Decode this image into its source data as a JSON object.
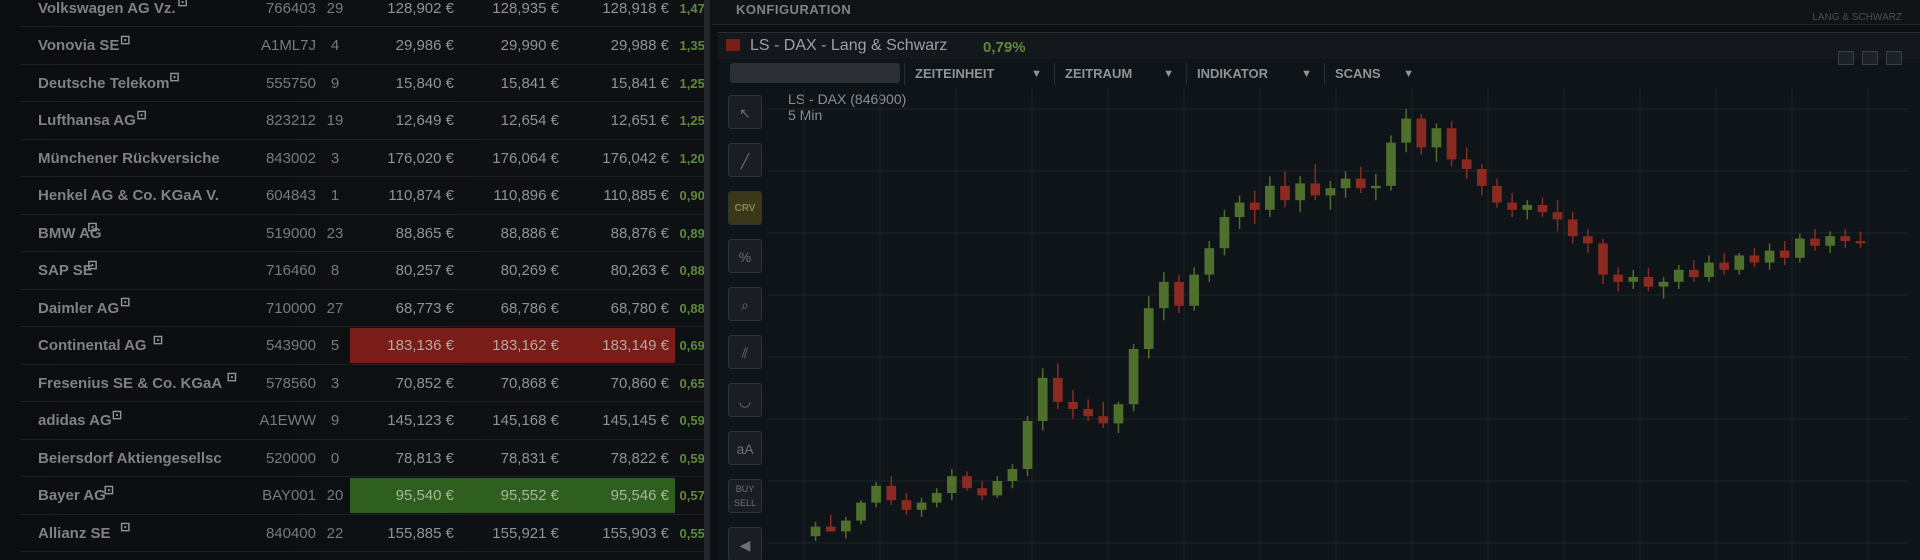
{
  "quotes": [
    {
      "name": "Volkswagen AG Vz.",
      "sup": true,
      "wkn": "766403",
      "count": "29",
      "c1": "128,902 €",
      "c2": "128,935 €",
      "c3": "128,918 €",
      "pct": "1,47 %",
      "hl": ""
    },
    {
      "name": "Vonovia SE",
      "sup": true,
      "wkn": "A1ML7J",
      "count": "4",
      "c1": "29,986 €",
      "c2": "29,990 €",
      "c3": "29,988 €",
      "pct": "1,35 %",
      "hl": ""
    },
    {
      "name": "Deutsche Telekom",
      "sup": true,
      "wkn": "555750",
      "count": "9",
      "c1": "15,840 €",
      "c2": "15,841 €",
      "c3": "15,841 €",
      "pct": "1,25 %",
      "hl": ""
    },
    {
      "name": "Lufthansa AG",
      "sup": true,
      "wkn": "823212",
      "count": "19",
      "c1": "12,649 €",
      "c2": "12,654 €",
      "c3": "12,651 €",
      "pct": "1,25 %",
      "hl": ""
    },
    {
      "name": "Münchener Rückversiche",
      "sup": false,
      "wkn": "843002",
      "count": "3",
      "c1": "176,020 €",
      "c2": "176,064 €",
      "c3": "176,042 €",
      "pct": "1,20 %",
      "hl": ""
    },
    {
      "name": "Henkel AG & Co. KGaA V.",
      "sup": false,
      "wkn": "604843",
      "count": "1",
      "c1": "110,874 €",
      "c2": "110,896 €",
      "c3": "110,885 €",
      "pct": "0,90 %",
      "hl": ""
    },
    {
      "name": "BMW AG",
      "sup": true,
      "wkn": "519000",
      "count": "23",
      "c1": "88,865 €",
      "c2": "88,886 €",
      "c3": "88,876 €",
      "pct": "0,89 %",
      "hl": ""
    },
    {
      "name": "SAP SE",
      "sup": true,
      "wkn": "716460",
      "count": "8",
      "c1": "80,257 €",
      "c2": "80,269 €",
      "c3": "80,263 €",
      "pct": "0,88 %",
      "hl": ""
    },
    {
      "name": "Daimler AG",
      "sup": true,
      "wkn": "710000",
      "count": "27",
      "c1": "68,773 €",
      "c2": "68,786 €",
      "c3": "68,780 €",
      "pct": "0,88 %",
      "hl": ""
    },
    {
      "name": "Continental AG",
      "sup": true,
      "wkn": "543900",
      "count": "5",
      "c1": "183,136 €",
      "c2": "183,162 €",
      "c3": "183,149 €",
      "pct": "0,69 %",
      "hl": "red"
    },
    {
      "name": "Fresenius SE & Co. KGaA",
      "sup": true,
      "wkn": "578560",
      "count": "3",
      "c1": "70,852 €",
      "c2": "70,868 €",
      "c3": "70,860 €",
      "pct": "0,65 %",
      "hl": ""
    },
    {
      "name": "adidas AG",
      "sup": true,
      "wkn": "A1EWW",
      "count": "9",
      "c1": "145,123 €",
      "c2": "145,168 €",
      "c3": "145,145 €",
      "pct": "0,59 %",
      "hl": ""
    },
    {
      "name": "Beiersdorf Aktiengesellsc",
      "sup": false,
      "wkn": "520000",
      "count": "0",
      "c1": "78,813 €",
      "c2": "78,831 €",
      "c3": "78,822 €",
      "pct": "0,59 %",
      "hl": ""
    },
    {
      "name": "Bayer AG",
      "sup": true,
      "wkn": "BAY001",
      "count": "20",
      "c1": "95,540 €",
      "c2": "95,552 €",
      "c3": "95,546 €",
      "pct": "0,57 %",
      "hl": "green"
    },
    {
      "name": "Allianz SE",
      "sup": true,
      "wkn": "840400",
      "count": "22",
      "c1": "155,885 €",
      "c2": "155,921 €",
      "c3": "155,903 €",
      "pct": "0,55 %",
      "hl": ""
    }
  ],
  "panel": {
    "config_title": "KONFIGURATION",
    "config_right": "LANG & SCHWARZ",
    "window_title": "LS - DAX - Lang & Schwarz",
    "window_change": "0,79%",
    "search_placeholder": "",
    "menus": [
      "ZEITEINHEIT",
      "ZEITRAUM",
      "INDIKATOR",
      "SCANS"
    ],
    "symbol_label": "LS - DAX (846900)",
    "interval_label": "5 Min",
    "tools": [
      {
        "icon": "cursor-icon",
        "glyph": "↖"
      },
      {
        "icon": "line-icon",
        "glyph": "╱"
      },
      {
        "icon": "crv-icon",
        "glyph": "CRV",
        "active": true
      },
      {
        "icon": "percent-icon",
        "glyph": "%"
      },
      {
        "icon": "zoom-icon",
        "glyph": "⌕"
      },
      {
        "icon": "parallel-lines-icon",
        "glyph": "⫽"
      },
      {
        "icon": "arc-icon",
        "glyph": "◡"
      },
      {
        "icon": "text-size-icon",
        "glyph": "aA"
      },
      {
        "icon": "buy-sell-icon",
        "glyph": "BUY SELL"
      },
      {
        "icon": "arrow-left-icon",
        "glyph": "◀"
      }
    ]
  },
  "colors": {
    "up": "#4f6f2c",
    "down": "#8a2a20",
    "grid": "#1c252c"
  },
  "chart_data": {
    "type": "candlestick",
    "candles": [
      [
        100,
        112,
        96,
        108
      ],
      [
        108,
        118,
        104,
        104
      ],
      [
        104,
        116,
        98,
        113
      ],
      [
        113,
        130,
        110,
        128
      ],
      [
        128,
        145,
        124,
        142
      ],
      [
        142,
        150,
        126,
        130
      ],
      [
        130,
        136,
        118,
        122
      ],
      [
        122,
        132,
        116,
        128
      ],
      [
        128,
        140,
        124,
        136
      ],
      [
        136,
        156,
        130,
        150
      ],
      [
        150,
        154,
        138,
        140
      ],
      [
        140,
        146,
        130,
        134
      ],
      [
        134,
        150,
        132,
        146
      ],
      [
        146,
        160,
        140,
        156
      ],
      [
        156,
        200,
        150,
        196
      ],
      [
        196,
        240,
        188,
        232
      ],
      [
        232,
        244,
        206,
        212
      ],
      [
        212,
        222,
        198,
        206
      ],
      [
        206,
        214,
        196,
        200
      ],
      [
        200,
        212,
        190,
        194
      ],
      [
        194,
        212,
        186,
        210
      ],
      [
        210,
        260,
        204,
        256
      ],
      [
        256,
        300,
        248,
        290
      ],
      [
        290,
        320,
        280,
        312
      ],
      [
        312,
        318,
        286,
        292
      ],
      [
        292,
        324,
        288,
        318
      ],
      [
        318,
        346,
        312,
        340
      ],
      [
        340,
        372,
        334,
        366
      ],
      [
        366,
        384,
        356,
        378
      ],
      [
        378,
        388,
        360,
        372
      ],
      [
        372,
        400,
        366,
        392
      ],
      [
        392,
        404,
        374,
        380
      ],
      [
        380,
        400,
        370,
        394
      ],
      [
        394,
        410,
        380,
        384
      ],
      [
        384,
        396,
        372,
        390
      ],
      [
        390,
        404,
        382,
        398
      ],
      [
        398,
        408,
        386,
        390
      ],
      [
        390,
        402,
        380,
        392
      ],
      [
        392,
        434,
        388,
        428
      ],
      [
        428,
        456,
        420,
        448
      ],
      [
        448,
        452,
        418,
        424
      ],
      [
        424,
        444,
        412,
        440
      ],
      [
        440,
        446,
        408,
        414
      ],
      [
        414,
        424,
        398,
        406
      ],
      [
        406,
        410,
        384,
        392
      ],
      [
        392,
        398,
        374,
        378
      ],
      [
        378,
        386,
        366,
        372
      ],
      [
        372,
        380,
        364,
        376
      ],
      [
        376,
        382,
        366,
        370
      ],
      [
        370,
        380,
        354,
        364
      ],
      [
        364,
        370,
        344,
        350
      ],
      [
        350,
        356,
        336,
        344
      ],
      [
        344,
        348,
        310,
        318
      ],
      [
        318,
        324,
        304,
        312
      ],
      [
        312,
        322,
        306,
        316
      ],
      [
        316,
        324,
        304,
        308
      ],
      [
        308,
        316,
        298,
        312
      ],
      [
        312,
        326,
        306,
        322
      ],
      [
        322,
        330,
        312,
        316
      ],
      [
        316,
        334,
        312,
        328
      ],
      [
        328,
        336,
        318,
        322
      ],
      [
        322,
        336,
        318,
        334
      ],
      [
        334,
        340,
        324,
        328
      ],
      [
        328,
        344,
        322,
        338
      ],
      [
        338,
        346,
        326,
        332
      ],
      [
        332,
        352,
        328,
        348
      ],
      [
        348,
        356,
        338,
        342
      ],
      [
        342,
        354,
        336,
        350
      ],
      [
        350,
        356,
        340,
        346
      ],
      [
        346,
        354,
        340,
        344
      ]
    ]
  }
}
